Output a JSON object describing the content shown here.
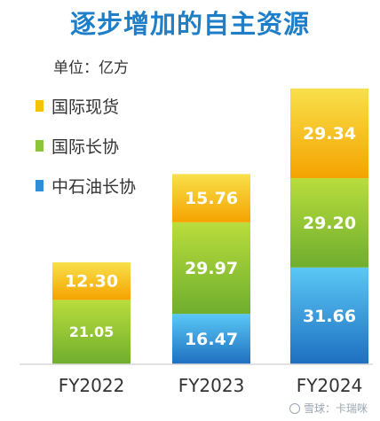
{
  "chart_data": {
    "type": "bar",
    "stacked": true,
    "title": "逐步增加的自主资源",
    "unit_label": "单位：亿方",
    "categories": [
      "FY2022",
      "FY2023",
      "FY2024"
    ],
    "series": [
      {
        "name": "中石油长协",
        "values": [
          null,
          16.47,
          31.66
        ],
        "labels": [
          "",
          "16.47",
          "31.66"
        ],
        "colors": [
          "#1e6fc0",
          "#5ac8f5"
        ]
      },
      {
        "name": "国际长协",
        "values": [
          21.05,
          29.97,
          29.2
        ],
        "labels": [
          "21.05",
          "29.97",
          "29.20"
        ],
        "colors": [
          "#6fae2e",
          "#b9dd3c"
        ]
      },
      {
        "name": "国际现货",
        "values": [
          12.3,
          15.76,
          29.34
        ],
        "labels": [
          "12.30",
          "15.76",
          "29.34"
        ],
        "colors": [
          "#f5a300",
          "#f8e04a"
        ]
      }
    ],
    "legend_order": [
      "国际现货",
      "国际长协",
      "中石油长协"
    ],
    "legend_position": "left"
  },
  "watermark": "雪球：卡瑞咪"
}
